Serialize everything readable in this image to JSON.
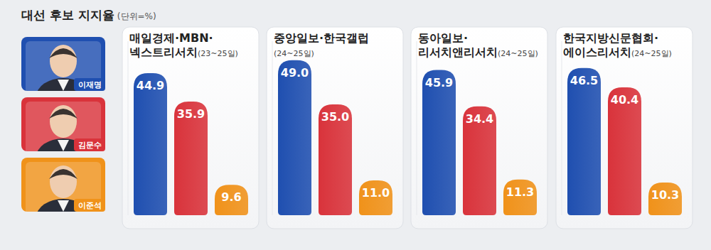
{
  "chart_data": {
    "type": "bar",
    "title": "대선 후보 지지율",
    "subtitle": "(단위=%)",
    "categories": [
      "매일경제·MBN·넥스트리서치(23~25일)",
      "중앙일보·한국갤럽(24~25일)",
      "동아일보·리서치앤리서치(24~25일)",
      "한국지방신문협회·에이스리서치(24~25일)"
    ],
    "series": [
      {
        "name": "이재명",
        "color": "#1f4fb0",
        "values": [
          44.9,
          49.0,
          45.9,
          46.5
        ],
        "value_labels": [
          "44.9",
          "49.0",
          "45.9",
          "46.5"
        ]
      },
      {
        "name": "김문수",
        "color": "#d9333b",
        "values": [
          35.9,
          35.0,
          34.4,
          40.4
        ],
        "value_labels": [
          "35.9",
          "35.0",
          "34.4",
          "40.4"
        ]
      },
      {
        "name": "이준석",
        "color": "#f0921a",
        "values": [
          9.6,
          11.0,
          11.3,
          10.3
        ],
        "value_labels": [
          "9.6",
          "11.0",
          "11.3",
          "10.3"
        ]
      }
    ],
    "ylim": [
      0,
      55
    ],
    "yticks": [],
    "tick_labels": false,
    "data_labels": true,
    "legend": "left",
    "grid": false
  }
}
